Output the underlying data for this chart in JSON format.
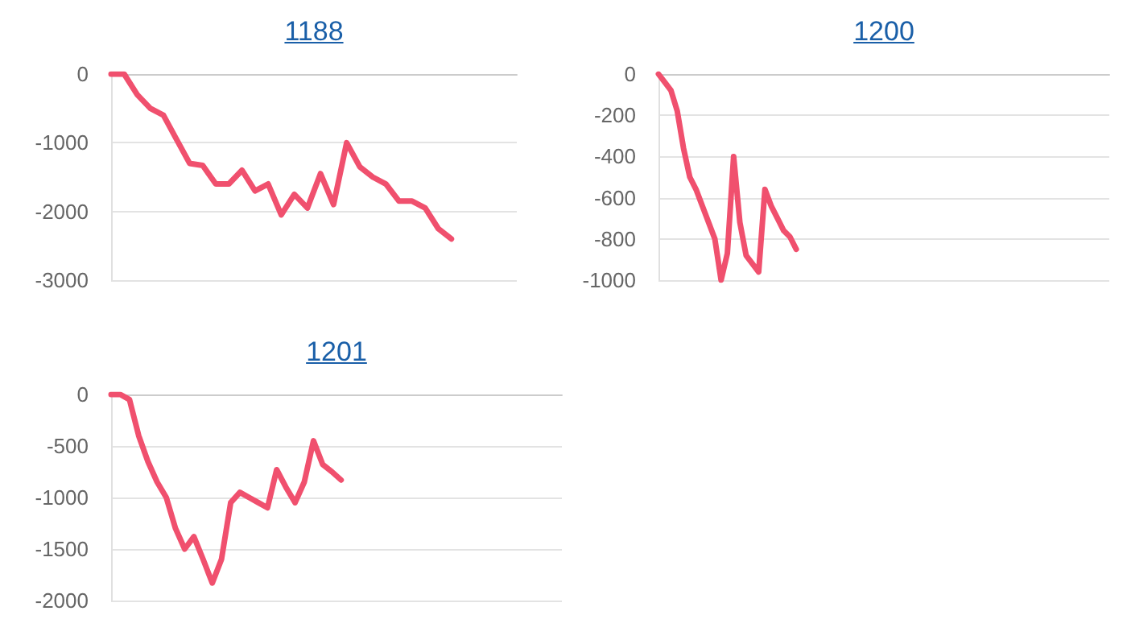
{
  "chart_data": [
    {
      "type": "line",
      "title": "1188",
      "categories": [
        null,
        null,
        null,
        null,
        null,
        null,
        null,
        null,
        null,
        null,
        null,
        null,
        null,
        null,
        null,
        null,
        null,
        null,
        null,
        null,
        null,
        null,
        null,
        null,
        null,
        null,
        null,
        null,
        null,
        null,
        null,
        null
      ],
      "values": [
        0,
        0,
        -300,
        -500,
        -600,
        -950,
        -1300,
        -1330,
        -1600,
        -1600,
        -1400,
        -1700,
        -1600,
        -2050,
        -1750,
        -1950,
        -1450,
        -1900,
        -1000,
        -1350,
        -1500,
        -1600,
        -1850,
        -1850,
        -1950,
        -2250,
        -2400,
        null,
        null,
        null,
        null,
        null
      ],
      "color": "#f0506e",
      "ylim": [
        -3000,
        0
      ],
      "yticks": [
        -3000,
        -2000,
        -1000,
        0
      ],
      "grid": "y",
      "tick_labels": "y"
    },
    {
      "type": "line",
      "title": "1200",
      "categories": [
        null,
        null,
        null,
        null,
        null,
        null,
        null,
        null,
        null,
        null,
        null,
        null,
        null,
        null,
        null,
        null,
        null,
        null,
        null,
        null,
        null,
        null,
        null,
        null,
        null,
        null,
        null,
        null,
        null,
        null,
        null,
        null,
        null,
        null,
        null,
        null,
        null,
        null,
        null,
        null,
        null,
        null,
        null,
        null,
        null,
        null,
        null,
        null,
        null,
        null,
        null,
        null,
        null,
        null,
        null,
        null,
        null,
        null,
        null,
        null,
        null,
        null,
        null,
        null,
        null,
        null,
        null,
        null,
        null,
        null,
        null,
        null,
        null
      ],
      "values": [
        0,
        -40,
        -80,
        -180,
        -360,
        -500,
        -560,
        -640,
        -720,
        -800,
        -1000,
        -870,
        -400,
        -720,
        -880,
        -920,
        -960,
        -560,
        -640,
        -700,
        -760,
        -790,
        -850,
        null,
        null,
        null,
        null,
        null,
        null,
        null,
        null,
        null,
        null,
        null,
        null,
        null,
        null,
        null,
        null,
        null,
        null,
        null,
        null,
        null,
        null,
        null,
        null,
        null,
        null,
        null,
        null,
        null,
        null,
        null,
        null,
        null,
        null,
        null,
        null,
        null,
        null,
        null,
        null,
        null,
        null,
        null,
        null,
        null,
        null,
        null,
        null,
        null,
        null
      ],
      "color": "#f0506e",
      "ylim": [
        -1000,
        0
      ],
      "yticks": [
        -1000,
        -800,
        -600,
        -400,
        -200,
        0
      ],
      "grid": "y",
      "tick_labels": "y"
    },
    {
      "type": "line",
      "title": "1201",
      "categories": [
        null,
        null,
        null,
        null,
        null,
        null,
        null,
        null,
        null,
        null,
        null,
        null,
        null,
        null,
        null,
        null,
        null,
        null,
        null,
        null,
        null,
        null,
        null,
        null,
        null,
        null,
        null,
        null,
        null,
        null,
        null,
        null,
        null,
        null,
        null,
        null,
        null,
        null,
        null,
        null,
        null,
        null,
        null,
        null,
        null,
        null,
        null,
        null,
        null,
        null
      ],
      "values": [
        0,
        0,
        -50,
        -400,
        -650,
        -850,
        -1000,
        -1300,
        -1500,
        -1380,
        -1600,
        -1830,
        -1600,
        -1050,
        -950,
        -1000,
        -1050,
        -1100,
        -730,
        -900,
        -1050,
        -850,
        -450,
        -680,
        -750,
        -830,
        null,
        null,
        null,
        null,
        null,
        null,
        null,
        null,
        null,
        null,
        null,
        null,
        null,
        null,
        null,
        null,
        null,
        null,
        null,
        null,
        null,
        null,
        null,
        null
      ],
      "color": "#f0506e",
      "ylim": [
        -2000,
        0
      ],
      "yticks": [
        -2000,
        -1500,
        -1000,
        -500,
        0
      ],
      "grid": "y",
      "tick_labels": "y"
    }
  ]
}
